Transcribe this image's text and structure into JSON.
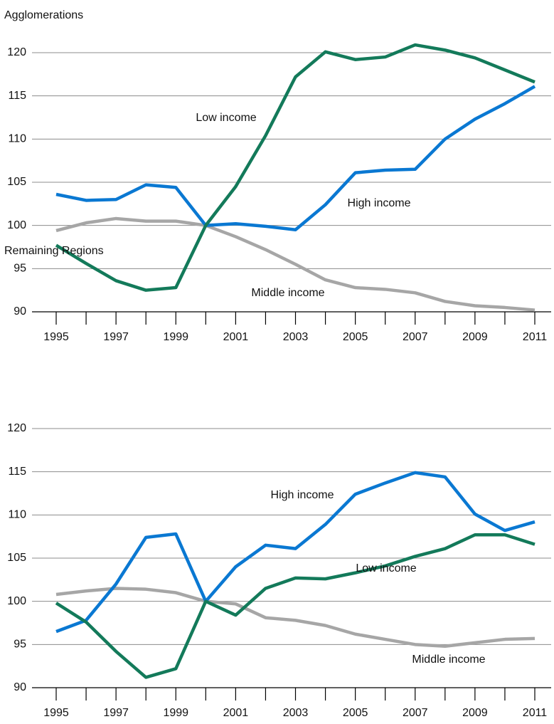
{
  "chart_data": [
    {
      "type": "line",
      "title": "Agglomerations",
      "x": [
        1995,
        1996,
        1997,
        1998,
        1999,
        2000,
        2001,
        2002,
        2003,
        2004,
        2005,
        2006,
        2007,
        2008,
        2009,
        2010,
        2011
      ],
      "xticks": [
        1995,
        1997,
        1999,
        2001,
        2003,
        2005,
        2007,
        2009,
        2011
      ],
      "ylim": [
        90,
        120
      ],
      "yticks": [
        90,
        95,
        100,
        105,
        110,
        115,
        120
      ],
      "grid": true,
      "series": [
        {
          "name": "Middle income",
          "color": "#a6a6a6",
          "values": [
            99.4,
            100.3,
            100.8,
            100.5,
            100.5,
            100.0,
            98.7,
            97.2,
            95.5,
            93.7,
            92.8,
            92.6,
            92.2,
            91.2,
            90.7,
            90.5,
            90.2
          ]
        },
        {
          "name": "High income",
          "color": "#0a78d2",
          "values": [
            103.6,
            102.9,
            103.0,
            104.7,
            104.4,
            100.0,
            100.2,
            99.9,
            99.5,
            102.4,
            106.1,
            106.4,
            106.5,
            110.0,
            112.3,
            114.1,
            116.1
          ]
        },
        {
          "name": "Low income",
          "color": "#137a5a",
          "values": [
            97.7,
            95.6,
            93.6,
            92.5,
            92.8,
            100.0,
            104.5,
            110.4,
            117.2,
            120.1,
            119.2,
            119.5,
            120.9,
            120.3,
            119.4,
            118.0,
            116.6
          ]
        }
      ]
    },
    {
      "type": "line",
      "title": "Remaining Regions",
      "x": [
        1995,
        1996,
        1997,
        1998,
        1999,
        2000,
        2001,
        2002,
        2003,
        2004,
        2005,
        2006,
        2007,
        2008,
        2009,
        2010,
        2011
      ],
      "xticks": [
        1995,
        1997,
        1999,
        2001,
        2003,
        2005,
        2007,
        2009,
        2011
      ],
      "ylim": [
        90,
        120
      ],
      "yticks": [
        90,
        95,
        100,
        105,
        110,
        115,
        120
      ],
      "grid": true,
      "series": [
        {
          "name": "Middle income",
          "color": "#a6a6a6",
          "values": [
            100.8,
            101.2,
            101.5,
            101.4,
            101.0,
            100.0,
            99.7,
            98.1,
            97.8,
            97.2,
            96.2,
            95.6,
            95.0,
            94.8,
            95.2,
            95.6,
            95.7
          ]
        },
        {
          "name": "High income",
          "color": "#0a78d2",
          "values": [
            96.5,
            97.8,
            102.0,
            107.4,
            107.8,
            100.0,
            104.0,
            106.5,
            106.1,
            108.9,
            112.4,
            113.7,
            114.9,
            114.4,
            110.1,
            108.2,
            109.2
          ]
        },
        {
          "name": "Low income",
          "color": "#137a5a",
          "values": [
            99.8,
            97.6,
            94.2,
            91.2,
            92.2,
            100.0,
            98.4,
            101.5,
            102.7,
            102.6,
            103.3,
            104.1,
            105.2,
            106.1,
            107.7,
            107.7,
            106.6
          ]
        }
      ]
    }
  ]
}
